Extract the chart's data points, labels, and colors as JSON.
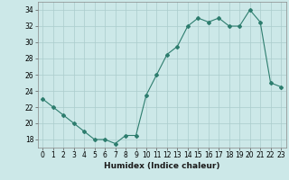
{
  "x": [
    0,
    1,
    2,
    3,
    4,
    5,
    6,
    7,
    8,
    9,
    10,
    11,
    12,
    13,
    14,
    15,
    16,
    17,
    18,
    19,
    20,
    21,
    22,
    23
  ],
  "y": [
    23,
    22,
    21,
    20,
    19,
    18,
    18,
    17.5,
    18.5,
    18.5,
    23.5,
    26,
    28.5,
    29.5,
    32,
    33,
    32.5,
    33,
    32,
    32,
    34,
    32.5,
    25,
    24.5
  ],
  "xlabel": "Humidex (Indice chaleur)",
  "ylim": [
    17,
    35
  ],
  "xlim": [
    -0.5,
    23.5
  ],
  "yticks": [
    18,
    20,
    22,
    24,
    26,
    28,
    30,
    32,
    34
  ],
  "xticks": [
    0,
    1,
    2,
    3,
    4,
    5,
    6,
    7,
    8,
    9,
    10,
    11,
    12,
    13,
    14,
    15,
    16,
    17,
    18,
    19,
    20,
    21,
    22,
    23
  ],
  "line_color": "#2d7d6e",
  "bg_color": "#cce8e8",
  "grid_color": "#aacccc",
  "marker": "D",
  "markersize": 2.0
}
